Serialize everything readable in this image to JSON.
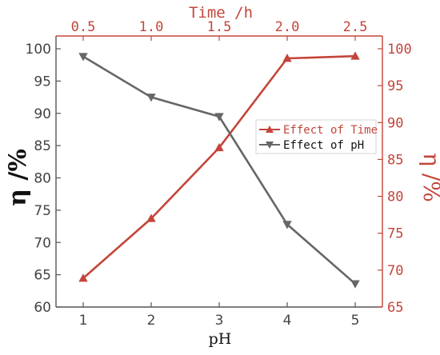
{
  "chart_data": {
    "type": "line",
    "series": [
      {
        "name": "Effect of Time",
        "axis": "top-right",
        "color": "#c4453a",
        "marker": "triangle-up",
        "x": [
          0.5,
          1.0,
          1.5,
          2.0,
          2.5
        ],
        "y": [
          68.9,
          77.0,
          86.6,
          98.7,
          99.0
        ]
      },
      {
        "name": "Effect of pH",
        "axis": "bottom-left",
        "color": "#666666",
        "marker": "triangle-down",
        "x": [
          1,
          2,
          3,
          4,
          5
        ],
        "y": [
          98.8,
          92.5,
          89.5,
          72.8,
          63.6
        ]
      }
    ],
    "axes": {
      "bottom": {
        "label": "pH",
        "range": [
          1,
          5
        ],
        "ticks": [
          "1",
          "2",
          "3",
          "4",
          "5"
        ],
        "color": "#555555"
      },
      "left": {
        "label": "η /%",
        "range": [
          60,
          100
        ],
        "ticks": [
          "60",
          "65",
          "70",
          "75",
          "80",
          "85",
          "90",
          "95",
          "100"
        ],
        "color": "#555555"
      },
      "top": {
        "label": "Time /h",
        "range": [
          0.5,
          2.5
        ],
        "ticks": [
          "0.5",
          "1.0",
          "1.5",
          "2.0",
          "2.5"
        ],
        "color": "#c4453a"
      },
      "right": {
        "label": "η /%",
        "range": [
          65,
          100
        ],
        "ticks": [
          "65",
          "70",
          "75",
          "80",
          "85",
          "90",
          "95",
          "100"
        ],
        "color": "#c4453a"
      }
    },
    "grid": false,
    "legend": {
      "placement": "center-right",
      "entries": [
        "Effect of Time",
        "Effect of pH"
      ]
    }
  }
}
